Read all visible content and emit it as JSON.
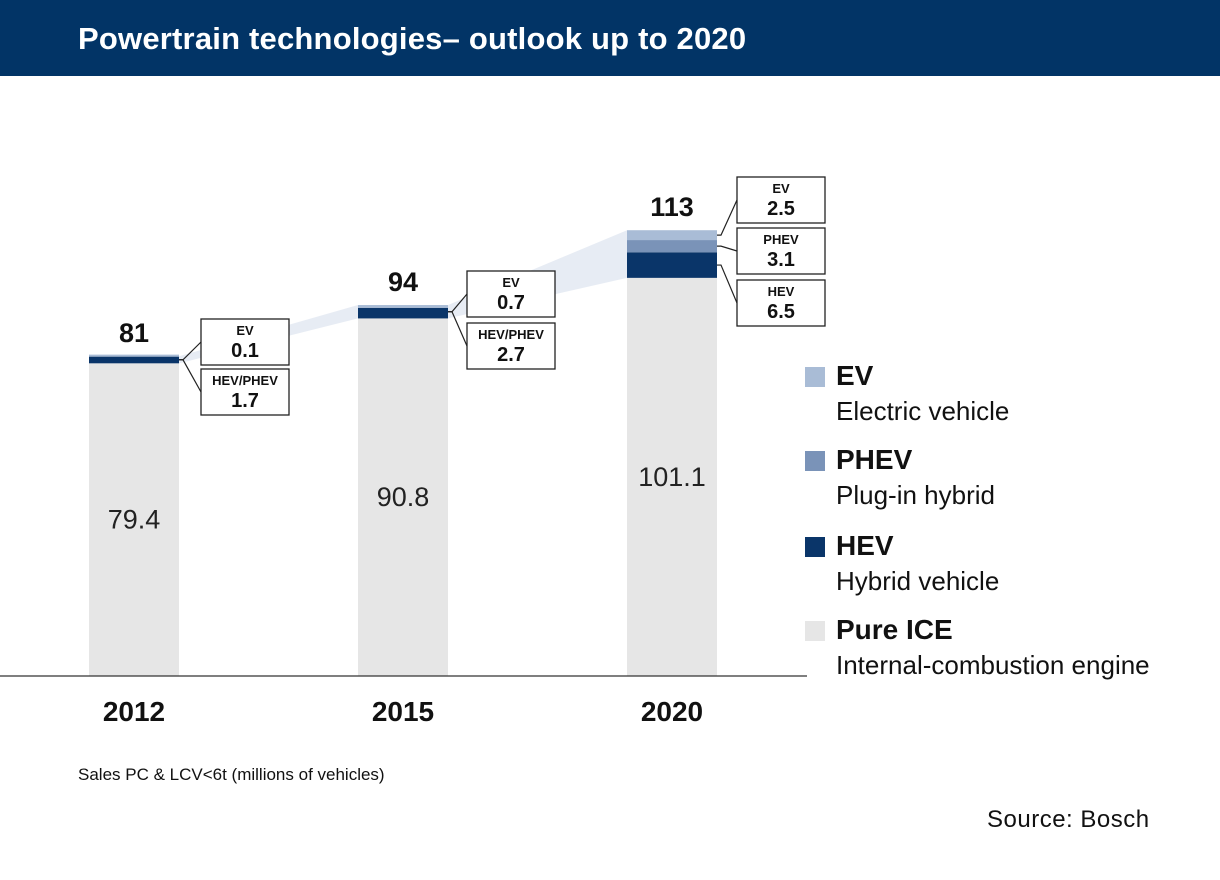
{
  "header": {
    "title": "Powertrain technologies– outlook up to 2020"
  },
  "chart_data": {
    "type": "bar",
    "stacked": true,
    "title": "Powertrain technologies– outlook up to 2020",
    "xlabel": "",
    "ylabel": "Sales PC & LCV<6t  (millions of vehicles)",
    "categories": [
      "2012",
      "2015",
      "2020"
    ],
    "totals": [
      "81",
      "94",
      "113"
    ],
    "series": [
      {
        "name": "Pure ICE",
        "values": [
          79.4,
          90.8,
          101.1
        ],
        "labels": [
          "79.4",
          "90.8",
          "101.1"
        ],
        "color": "#e6e6e6"
      },
      {
        "name": "HEV",
        "values": [
          null,
          null,
          6.5
        ],
        "color": "#0a3569"
      },
      {
        "name": "HEV/PHEV",
        "values": [
          1.7,
          2.7,
          null
        ],
        "color": "#0a3569"
      },
      {
        "name": "PHEV",
        "values": [
          null,
          null,
          3.1
        ],
        "color": "#7a93b8"
      },
      {
        "name": "EV",
        "values": [
          0.1,
          0.7,
          2.5
        ],
        "color": "#a9bcd6"
      }
    ],
    "callouts": [
      [
        {
          "label": "EV",
          "value": "0.1"
        },
        {
          "label": "HEV/PHEV",
          "value": "1.7"
        }
      ],
      [
        {
          "label": "EV",
          "value": "0.7"
        },
        {
          "label": "HEV/PHEV",
          "value": "2.7"
        }
      ],
      [
        {
          "label": "EV",
          "value": "2.5"
        },
        {
          "label": "PHEV",
          "value": "3.1"
        },
        {
          "label": "HEV",
          "value": "6.5"
        }
      ]
    ],
    "ylim": [
      0,
      113
    ],
    "grid": false,
    "legend_position": "right"
  },
  "legend": {
    "items": [
      {
        "label": "EV",
        "description": "Electric vehicle",
        "color": "#a9bcd6"
      },
      {
        "label": "PHEV",
        "description": "Plug-in hybrid",
        "color": "#7a93b8"
      },
      {
        "label": "HEV",
        "description": "Hybrid vehicle",
        "color": "#0a3569"
      },
      {
        "label": "Pure ICE",
        "description": "Internal-combustion engine",
        "color": "#e6e6e6"
      }
    ]
  },
  "footnote": "Sales PC & LCV<6t  (millions of vehicles)",
  "source": "Source: Bosch"
}
